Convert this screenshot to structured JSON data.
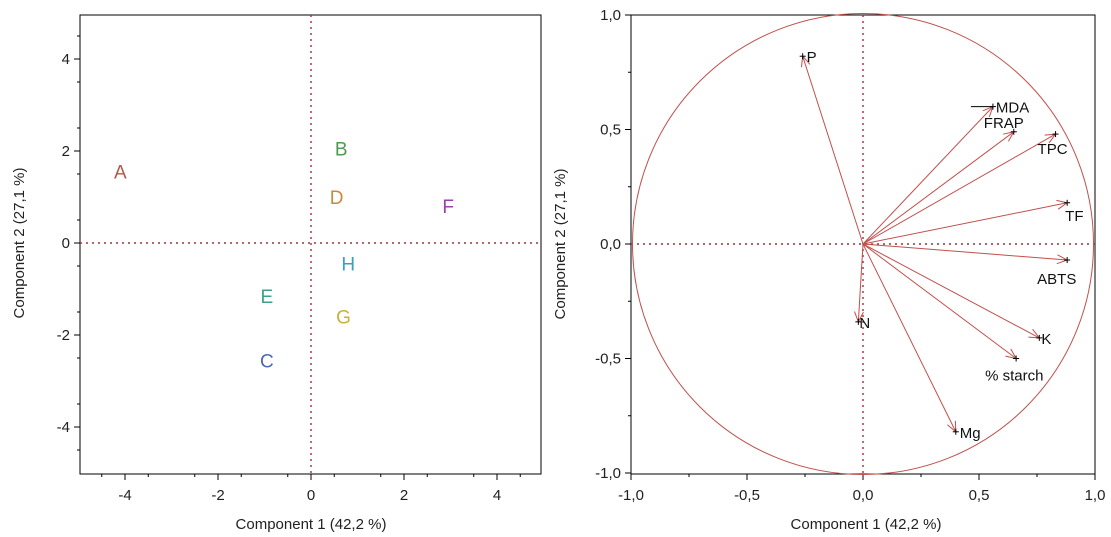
{
  "chart_data": [
    {
      "type": "scatter",
      "xlabel": "Component 1  (42,2 %)",
      "ylabel": "Component 2  (27,1 %)",
      "xlim": [
        -5,
        5
      ],
      "ylim": [
        -5,
        5
      ],
      "xticks": [
        -4,
        -2,
        0,
        2,
        4
      ],
      "yticks": [
        4,
        2,
        0,
        -2,
        -4
      ],
      "xtick_labels": [
        "-4",
        "-2",
        "0",
        "2",
        "4"
      ],
      "ytick_labels": [
        "4",
        "2",
        "0",
        "-2",
        "-4"
      ],
      "points": [
        {
          "label": "A",
          "x": -4.1,
          "y": 1.55,
          "color": "#b5554b"
        },
        {
          "label": "B",
          "x": 0.65,
          "y": 2.05,
          "color": "#4f9a4f"
        },
        {
          "label": "D",
          "x": 0.55,
          "y": 1.0,
          "color": "#c98a3a"
        },
        {
          "label": "F",
          "x": 2.95,
          "y": 0.8,
          "color": "#9b3fb0"
        },
        {
          "label": "H",
          "x": 0.8,
          "y": -0.45,
          "color": "#3aa0c0"
        },
        {
          "label": "E",
          "x": -0.95,
          "y": -1.15,
          "color": "#3fa08a"
        },
        {
          "label": "G",
          "x": 0.7,
          "y": -1.6,
          "color": "#c8b33a"
        },
        {
          "label": "C",
          "x": -0.95,
          "y": -2.55,
          "color": "#4a6ab0"
        }
      ]
    },
    {
      "type": "scatter",
      "subtype": "loading-plot",
      "xlabel": "Component 1  (42,2 %)",
      "ylabel": "Component 2  (27,1 %)",
      "xlim": [
        -1.0,
        1.0
      ],
      "ylim": [
        -1.0,
        1.0
      ],
      "xticks": [
        -1.0,
        -0.5,
        0.0,
        0.5,
        1.0
      ],
      "yticks": [
        1.0,
        0.5,
        0.0,
        -0.5,
        -1.0
      ],
      "xtick_labels": [
        "-1,0",
        "-0,5",
        "0,0",
        "0,5",
        "1,0"
      ],
      "ytick_labels": [
        "1,0",
        "0,5",
        "0,0",
        "-0,5",
        "-1,0"
      ],
      "unit_circle": true,
      "color": "#c0504d",
      "vectors": [
        {
          "label": "P",
          "x": -0.26,
          "y": 0.82
        },
        {
          "label": "MDA",
          "x": 0.56,
          "y": 0.6
        },
        {
          "label": "FRAP",
          "x": 0.65,
          "y": 0.49
        },
        {
          "label": "TPC",
          "x": 0.83,
          "y": 0.48
        },
        {
          "label": "TF",
          "x": 0.88,
          "y": 0.18
        },
        {
          "label": "ABTS",
          "x": 0.88,
          "y": -0.07
        },
        {
          "label": "N",
          "x": -0.02,
          "y": -0.34
        },
        {
          "label": "K",
          "x": 0.76,
          "y": -0.41
        },
        {
          "label": "% starch",
          "x": 0.66,
          "y": -0.5
        },
        {
          "label": "Mg",
          "x": 0.4,
          "y": -0.82
        }
      ]
    }
  ]
}
